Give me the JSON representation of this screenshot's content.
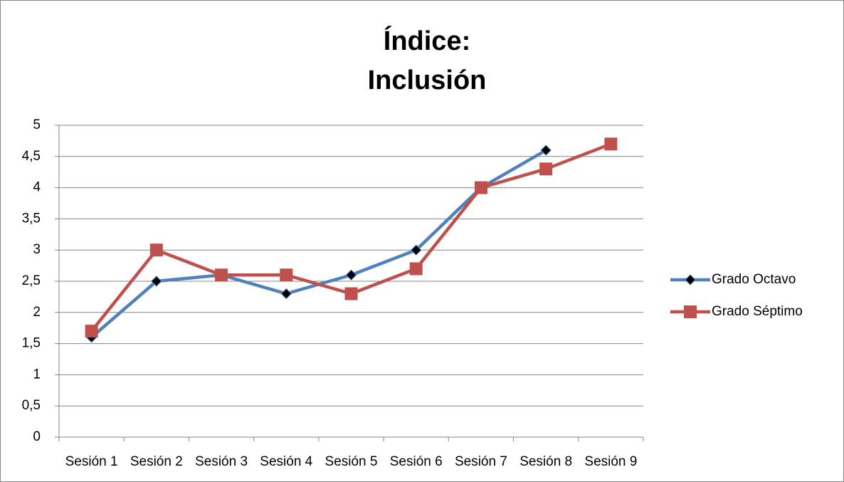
{
  "chart_data": {
    "type": "line",
    "title": [
      "Índice:",
      "Inclusión"
    ],
    "categories": [
      "Sesión 1",
      "Sesión 2",
      "Sesión 3",
      "Sesión 4",
      "Sesión 5",
      "Sesión 6",
      "Sesión 7",
      "Sesión 8",
      "Sesión 9"
    ],
    "series": [
      {
        "name": "Grado Octavo",
        "color": "#4f81bd",
        "marker": "diamond",
        "marker_color": "#000000",
        "values": [
          1.6,
          2.5,
          2.6,
          2.3,
          2.6,
          3.0,
          4.0,
          4.6,
          null
        ]
      },
      {
        "name": "Grado Séptimo",
        "color": "#c0504d",
        "marker": "square",
        "marker_color": "#c0504d",
        "values": [
          1.7,
          3.0,
          2.6,
          2.6,
          2.3,
          2.7,
          4.0,
          4.3,
          4.7
        ]
      }
    ],
    "ylim": [
      0,
      5
    ],
    "yticks": [
      0,
      {
        "value": 0.5,
        "label": "0,5"
      },
      1,
      {
        "value": 1.5,
        "label": "1,5"
      },
      2,
      {
        "value": 2.5,
        "label": "2,5"
      },
      3,
      {
        "value": 3.5,
        "label": "3,5"
      },
      4,
      {
        "value": 4.5,
        "label": "4,5"
      },
      5
    ],
    "grid": true,
    "legend": "right"
  }
}
